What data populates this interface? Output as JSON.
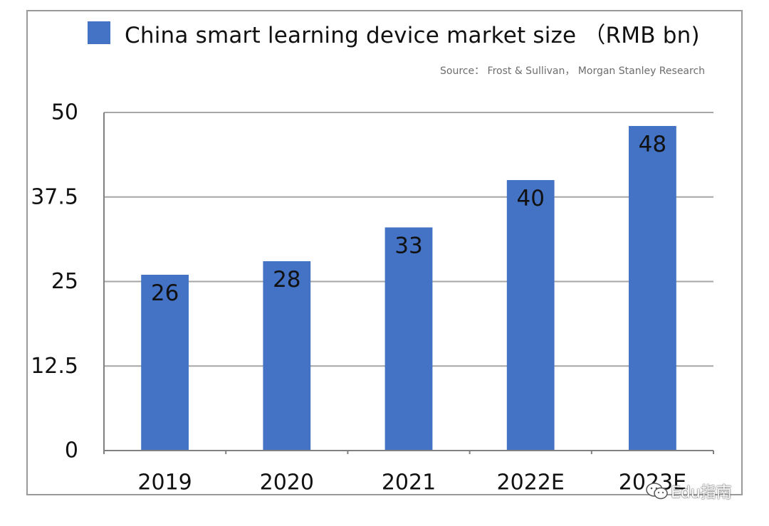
{
  "legend": {
    "label": "China smart learning device market size （RMB bn)"
  },
  "source": "Source： Frost & Sullivan，  Morgan Stanley Research",
  "watermark": {
    "text": "Edu指南",
    "icon": "wechat-icon"
  },
  "colors": {
    "bar": "#4472C4",
    "gridline": "#a6a6a6",
    "axis": "#808080",
    "frame": "#9a9a9a"
  },
  "chart_data": {
    "type": "bar",
    "title": "China smart learning device market size （RMB bn)",
    "categories": [
      "2019",
      "2020",
      "2021",
      "2022E",
      "2023E"
    ],
    "series": [
      {
        "name": "China smart learning device market size （RMB bn)",
        "values": [
          26,
          28,
          33,
          40,
          48
        ]
      }
    ],
    "data_labels": [
      "26",
      "28",
      "33",
      "40",
      "48"
    ],
    "y_ticks": [
      0,
      12.5,
      25,
      37.5,
      50
    ],
    "y_tick_labels": [
      "0",
      "12.5",
      "25",
      "37.5",
      "50"
    ],
    "ylim": [
      0,
      50
    ],
    "grid": true,
    "legend_position": "top-left",
    "xlabel": "",
    "ylabel": ""
  }
}
